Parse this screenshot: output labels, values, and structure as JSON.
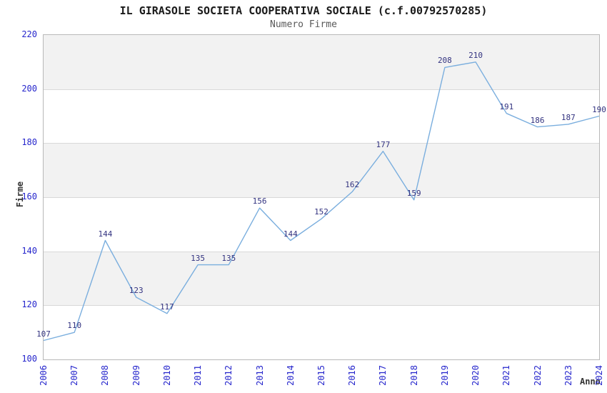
{
  "chart_data": {
    "type": "line",
    "title": "IL GIRASOLE SOCIETA COOPERATIVA SOCIALE (c.f.00792570285)",
    "subtitle": "Numero Firme",
    "xlabel": "Anno",
    "ylabel": "Firme",
    "categories": [
      "2006",
      "2007",
      "2008",
      "2009",
      "2010",
      "2011",
      "2012",
      "2013",
      "2014",
      "2015",
      "2016",
      "2017",
      "2018",
      "2019",
      "2020",
      "2021",
      "2022",
      "2023",
      "2024"
    ],
    "series": [
      {
        "name": "Numero Firme",
        "values": [
          107,
          110,
          144,
          123,
          117,
          135,
          135,
          156,
          144,
          152,
          162,
          177,
          159,
          208,
          210,
          191,
          186,
          187,
          190
        ]
      }
    ],
    "ylim": [
      100,
      220
    ],
    "ytick_step": 20,
    "yticks": [
      100,
      120,
      140,
      160,
      180,
      200,
      220
    ],
    "grid": true,
    "legend": "none",
    "banded_background": true,
    "data_labels": true,
    "colors": {
      "line": "#7aaede",
      "point_label": "#333380",
      "tick_label": "#2626cc",
      "band": "#f2f2f2",
      "gridline": "#d9d9d9",
      "plot_border": "#b8b8b8",
      "title": "#1a1a1a",
      "subtitle": "#595959",
      "axis_title": "#333333",
      "background": "#ffffff"
    }
  }
}
